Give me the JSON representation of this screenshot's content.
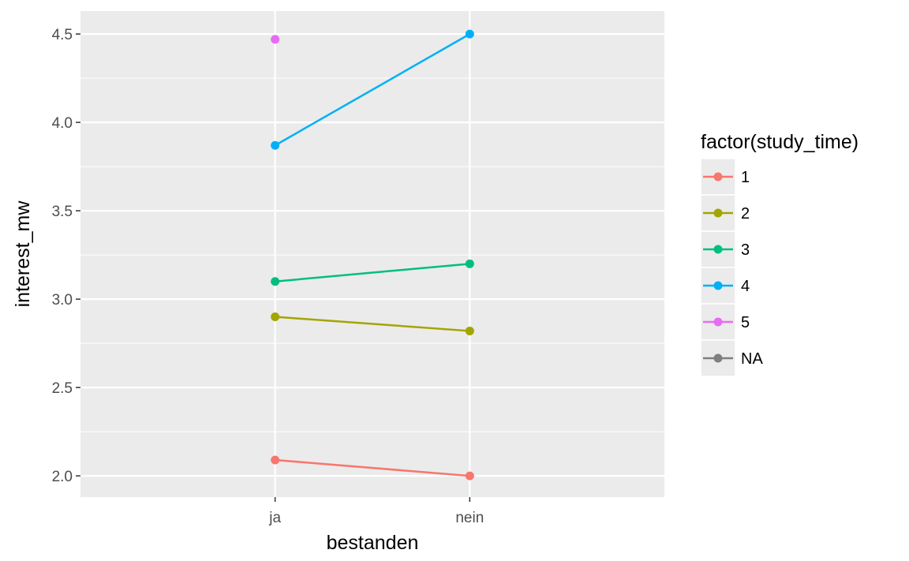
{
  "chart_data": {
    "type": "line",
    "xlabel": "bestanden",
    "ylabel": "interest_mw",
    "categories": [
      "ja",
      "nein"
    ],
    "ylim": [
      1.88,
      4.63
    ],
    "yticks": [
      2.0,
      2.5,
      3.0,
      3.5,
      4.0,
      4.5
    ],
    "ytick_labels": [
      "2.0",
      "2.5",
      "3.0",
      "3.5",
      "4.0",
      "4.5"
    ],
    "grid": true,
    "legend_title": "factor(study_time)",
    "legend_position": "right",
    "series": [
      {
        "name": "1",
        "color": "#F8766D",
        "values": [
          2.09,
          2.0
        ]
      },
      {
        "name": "2",
        "color": "#A3A500",
        "values": [
          2.9,
          2.82
        ]
      },
      {
        "name": "3",
        "color": "#00BF7D",
        "values": [
          3.1,
          3.2
        ]
      },
      {
        "name": "4",
        "color": "#00B0F6",
        "values": [
          3.87,
          4.5
        ]
      },
      {
        "name": "5",
        "color": "#E76BF3",
        "values": [
          4.47,
          null
        ]
      },
      {
        "name": "NA",
        "color": "#7F7F7F",
        "values": [
          null,
          null
        ]
      }
    ]
  }
}
